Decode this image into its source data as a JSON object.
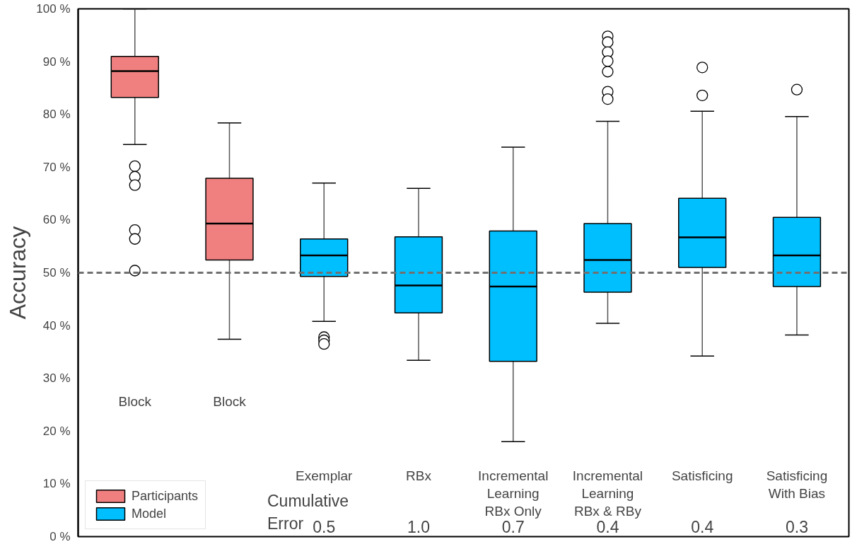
{
  "chart_data": {
    "type": "box",
    "ylabel": "Accuracy",
    "categories": [
      "Block",
      "Block",
      "Exemplar",
      "RBx",
      "Incremental\nLearning\nRBx Only",
      "Incremental\nLearning\nRBx & RBy",
      "Satisficing",
      "Satisficing\nWith Bias"
    ],
    "series": [
      {
        "name": "Participants",
        "color": "#f08080",
        "boxes": [
          {
            "low": 74.3,
            "q1": 83.2,
            "median": 88.2,
            "q3": 91.0,
            "high": 100,
            "outliers": [
              70.2,
              68.2,
              66.6,
              58.1,
              56.4,
              50.4
            ]
          },
          {
            "low": 37.4,
            "q1": 52.4,
            "median": 59.3,
            "q3": 67.9,
            "high": 78.4
          },
          null,
          null,
          null,
          null,
          null,
          null
        ]
      },
      {
        "name": "Model",
        "color": "#00bfff",
        "boxes": [
          null,
          null,
          {
            "low": 40.8,
            "q1": 49.3,
            "median": 53.3,
            "q3": 56.4,
            "high": 67.0,
            "outliers": [
              37.8,
              37.2,
              36.5
            ]
          },
          {
            "low": 33.4,
            "q1": 42.4,
            "median": 47.6,
            "q3": 56.8,
            "high": 66.0
          },
          {
            "low": 18.0,
            "q1": 33.2,
            "median": 47.4,
            "q3": 57.9,
            "high": 73.8
          },
          {
            "low": 40.4,
            "q1": 46.3,
            "median": 52.4,
            "q3": 59.3,
            "high": 78.7,
            "outliers": [
              94.8,
              93.7,
              91.8,
              90.1,
              88.1,
              84.3,
              82.9
            ]
          },
          {
            "low": 34.2,
            "q1": 51.0,
            "median": 56.7,
            "q3": 64.1,
            "high": 80.6,
            "outliers": [
              88.9,
              83.6
            ]
          },
          {
            "low": 38.2,
            "q1": 47.4,
            "median": 53.3,
            "q3": 60.5,
            "high": 79.6,
            "outliers": [
              84.7
            ]
          }
        ]
      }
    ],
    "ylim": [
      0,
      100
    ],
    "yticks": [
      {
        "value": 0,
        "label": "0 %"
      },
      {
        "value": 10,
        "label": "10 %"
      },
      {
        "value": 20,
        "label": "20 %"
      },
      {
        "value": 30,
        "label": "30 %"
      },
      {
        "value": 40,
        "label": "40 %"
      },
      {
        "value": 50,
        "label": "50 %"
      },
      {
        "value": 60,
        "label": "60 %"
      },
      {
        "value": 70,
        "label": "70 %"
      },
      {
        "value": 80,
        "label": "80 %"
      },
      {
        "value": 90,
        "label": "90 %"
      },
      {
        "value": 100,
        "label": "100 %"
      }
    ],
    "ref_lines": [
      {
        "axis": "y",
        "value": 50,
        "color": "#707070",
        "line_style": "dashed"
      }
    ],
    "annotations": [
      "Cumulative\nError",
      "0.5",
      "1.0",
      "0.7",
      "0.4",
      "0.4",
      "0.3"
    ],
    "grid": false,
    "legend": "bottom left",
    "tick_labels": "y"
  }
}
